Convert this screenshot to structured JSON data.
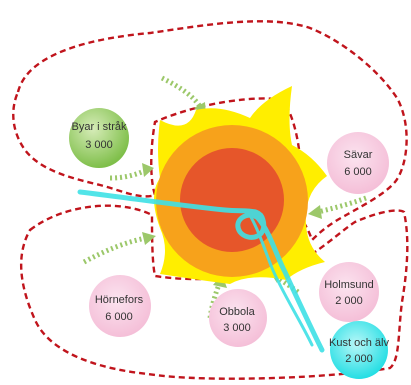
{
  "colors": {
    "border": "#c0141c",
    "star": "#ffee00",
    "ring": "#f7a21b",
    "core": "#e6562a",
    "river": "#3fe1e6",
    "green_node": "#8fc65a",
    "pink_node": "#f6c6dd",
    "cyan_node": "#22e0e6",
    "arrow": "#9cc86a"
  },
  "nodes": [
    {
      "id": "byar",
      "name": "Byar i stråk",
      "value": "3 000",
      "fill": "green_node"
    },
    {
      "id": "savar",
      "name": "Sävar",
      "value": "6 000",
      "fill": "pink_node"
    },
    {
      "id": "hornefors",
      "name": "Hörnefors",
      "value": "6 000",
      "fill": "pink_node"
    },
    {
      "id": "obbola",
      "name": "Obbola",
      "value": "3 000",
      "fill": "pink_node"
    },
    {
      "id": "holmsund",
      "name": "Holmsund",
      "value": "2 000",
      "fill": "pink_node"
    },
    {
      "id": "kust",
      "name": "Kust och älv",
      "value": "2 000",
      "fill": "cyan_node"
    }
  ]
}
